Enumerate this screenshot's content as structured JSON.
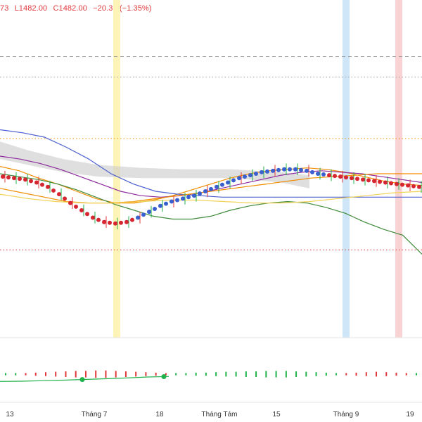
{
  "header": {
    "partial_open": "73",
    "low_label": "L1482.00",
    "close_label": "C1482.00",
    "change_label": "−20.35 (−1.35%)"
  },
  "colors": {
    "down": "#e0373b",
    "up": "#21b24b",
    "price_red_dots": "#d62631",
    "price_blue_dots": "#3a5fcf",
    "cloud": "#c9c9cc",
    "orange": "#f08c00",
    "purple": "#8e2c9e",
    "green_line": "#3f8a3a",
    "blue_line": "#4a5fd0",
    "yellow_line": "#f2d35a",
    "highlight_yellow": "#fff4b8",
    "highlight_blue": "#cfe6f8",
    "highlight_red": "#f9d3d3"
  },
  "x_axis_labels": [
    "13",
    "Tháng 7",
    "18",
    "Tháng Tám",
    "15",
    "Tháng 9",
    "19"
  ],
  "chart_data": [
    {
      "type": "line",
      "title": "",
      "xlabel": "",
      "ylabel": "",
      "x_range": [
        0,
        600
      ],
      "ylim": [
        1440,
        1660
      ],
      "series": [
        {
          "kind": "dots",
          "values": [
            1548,
            1547,
            1546,
            1544,
            1541,
            1536,
            1530,
            1525,
            1520,
            1517,
            1516,
            1517,
            1520,
            1524,
            1528,
            1531,
            1533,
            1535,
            1538,
            1541,
            1544,
            1547,
            1549,
            1551,
            1552,
            1553,
            1553,
            1552,
            1550,
            1549,
            1548,
            1547,
            1546,
            1545,
            1544,
            1543,
            1542,
            1541
          ]
        },
        {
          "kind": "line",
          "values": [
            1555,
            1552,
            1547,
            1543,
            1538,
            1533,
            1530,
            1530,
            1532,
            1535,
            1539,
            1543,
            1547,
            1550,
            1552,
            1553,
            1554,
            1553,
            1551,
            1548,
            1545,
            1543,
            1542
          ]
        },
        {
          "kind": "line",
          "values": [
            1562,
            1560,
            1557,
            1553,
            1548,
            1543,
            1538,
            1535,
            1534,
            1535,
            1537,
            1540,
            1543,
            1546,
            1549,
            1551,
            1552,
            1551,
            1550,
            1548,
            1546,
            1544
          ]
        },
        {
          "kind": "line",
          "values": [
            1550,
            1548,
            1546,
            1543,
            1539,
            1534,
            1529,
            1525,
            1521,
            1519,
            1519,
            1521,
            1525,
            1528,
            1530,
            1531,
            1530,
            1527,
            1523,
            1517,
            1512,
            1508,
            1495
          ]
        },
        {
          "kind": "line",
          "values": [
            1580,
            1578,
            1575,
            1568,
            1560,
            1550,
            1543,
            1538,
            1536,
            1535,
            1534,
            1534,
            1534,
            1534,
            1534,
            1534,
            1534,
            1534,
            1534,
            1534
          ]
        },
        {
          "kind": "line",
          "values": [
            1540,
            1537,
            1534,
            1531,
            1530,
            1530,
            1531,
            1533,
            1535,
            1537,
            1539,
            1541,
            1543,
            1545,
            1547,
            1548,
            1549,
            1550,
            1550,
            1550
          ]
        },
        {
          "kind": "line",
          "values": [
            1536,
            1533,
            1531,
            1530,
            1530,
            1531,
            1532,
            1532,
            1531,
            1530,
            1530,
            1531,
            1533,
            1535,
            1537,
            1538
          ]
        }
      ],
      "horizontal_lines": [
        {
          "value": 1630,
          "style": "dashed",
          "color": "#9a9a9a"
        },
        {
          "value": 1616,
          "style": "dotted",
          "color": "#9a9a9a"
        },
        {
          "value": 1574,
          "style": "dotted",
          "color": "#f08c00"
        },
        {
          "value": 1498,
          "style": "dotted",
          "color": "#e0373b"
        }
      ],
      "highlight_bands": [
        {
          "label": "yellow",
          "x": 166
        },
        {
          "label": "blue",
          "x": 492
        },
        {
          "label": "red",
          "x": 567
        }
      ]
    },
    {
      "type": "bar",
      "title": "",
      "xlabel": "",
      "ylabel": "",
      "note": "histogram-style oscillator (red/green ticks) with a green trend line",
      "values": [
        1,
        1,
        -1,
        -2,
        -3,
        -4,
        -5,
        -6,
        -6,
        -7,
        -7,
        -6,
        -5,
        -4,
        -3,
        -2,
        -1,
        1,
        1,
        2,
        2,
        3,
        4,
        4,
        5,
        5,
        6,
        6,
        6,
        5,
        4,
        3,
        2,
        1,
        -1,
        -2,
        -3,
        -4,
        -3,
        -2,
        -1,
        1
      ],
      "trend": [
        0.2,
        0.3,
        0.5,
        0.7,
        1.0,
        1.3,
        1.6,
        2.0,
        2.2
      ],
      "trend_markers": [
        117,
        233
      ]
    }
  ]
}
